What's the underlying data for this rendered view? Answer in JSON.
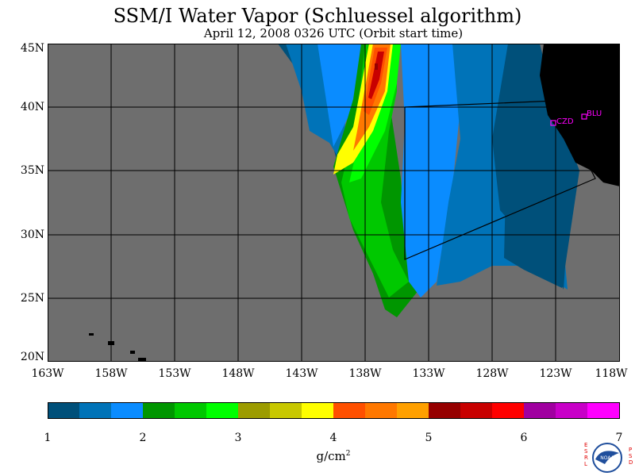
{
  "title": "SSM/I Water Vapor (Schluessel algorithm)",
  "subtitle": "April 12, 2008  0326 UTC  (Orbit start time)",
  "map": {
    "lat_labels": [
      "45N",
      "40N",
      "35N",
      "30N",
      "25N",
      "20N"
    ],
    "lon_labels": [
      "163W",
      "158W",
      "153W",
      "148W",
      "143W",
      "138W",
      "133W",
      "128W",
      "123W",
      "118W"
    ],
    "stations": [
      "CZD",
      "BLU"
    ],
    "colors": {
      "ocean_no_data": "#6e6e6e",
      "land": "#000000",
      "grid": "#000000",
      "stations": "#ff00ff"
    }
  },
  "colorbar": {
    "colors": [
      "#00507a",
      "#0073b8",
      "#0a8cff",
      "#009600",
      "#00c800",
      "#00ff00",
      "#9c9c00",
      "#c8c800",
      "#ffff00",
      "#ff5000",
      "#ff7800",
      "#ffa000",
      "#960000",
      "#c80000",
      "#ff0000",
      "#a000a0",
      "#c800c8",
      "#ff00ff"
    ],
    "tick_labels": [
      "1",
      "2",
      "3",
      "4",
      "5",
      "6",
      "7"
    ],
    "units": "g/cm",
    "units_exp": "2"
  },
  "logo": {
    "left_text": "ESRL",
    "right_text": "PSD",
    "center_text": "NOAA",
    "colors": {
      "side_text": "#e00000",
      "disc": "#1f4e9c"
    }
  }
}
